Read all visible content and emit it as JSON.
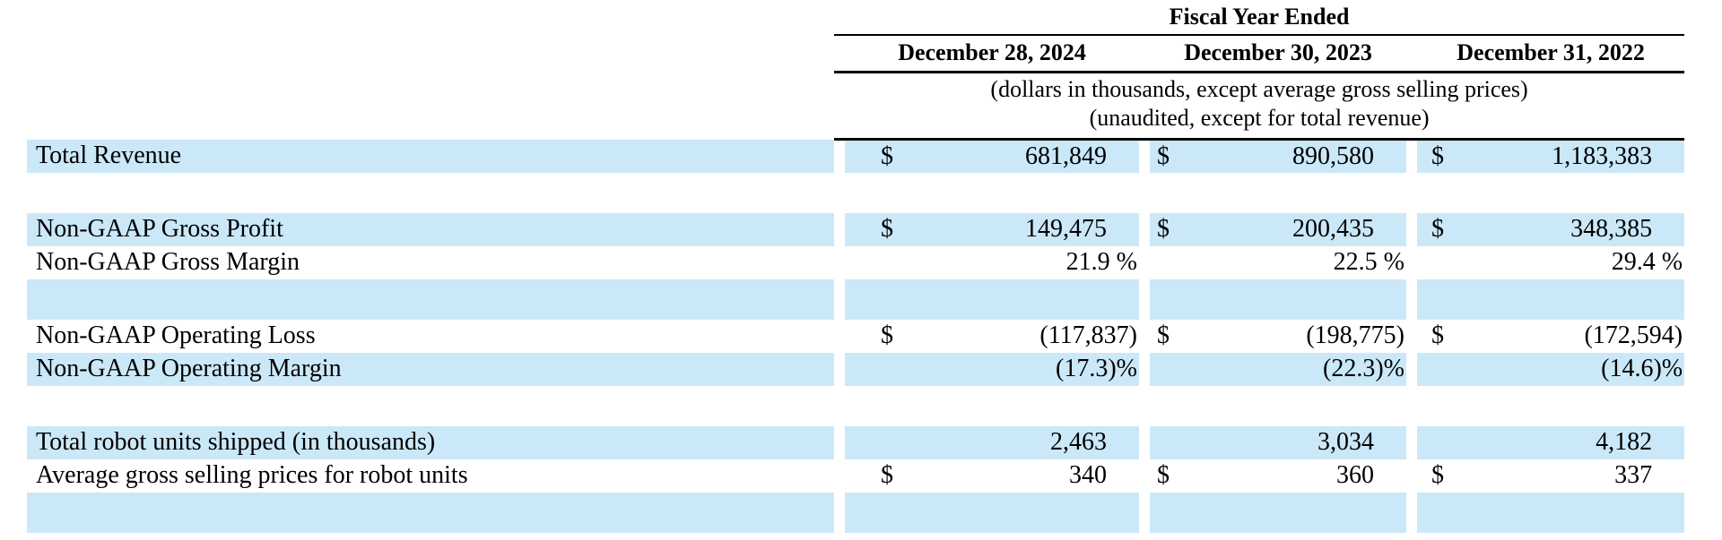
{
  "header": {
    "title": "Fiscal Year Ended",
    "columns": [
      "December 28, 2024",
      "December 30, 2023",
      "December 31, 2022"
    ],
    "notes": [
      "(dollars in thousands, except average gross selling prices)",
      "(unaudited, except for total revenue)"
    ]
  },
  "rows": [
    {
      "label": "Total Revenue",
      "shaded": true,
      "spacer": false,
      "dollar": true,
      "values": [
        "681,849",
        "890,580",
        "1,183,383"
      ]
    },
    {
      "label": "",
      "shaded": false,
      "spacer": true,
      "dollar": false,
      "values": [
        "",
        "",
        ""
      ]
    },
    {
      "label": "Non-GAAP Gross Profit",
      "shaded": true,
      "spacer": false,
      "dollar": true,
      "values": [
        "149,475",
        "200,435",
        "348,385"
      ]
    },
    {
      "label": "Non-GAAP Gross Margin",
      "shaded": false,
      "spacer": false,
      "dollar": false,
      "values": [
        "21.9 %",
        "22.5 %",
        "29.4 %"
      ]
    },
    {
      "label": "",
      "shaded": true,
      "spacer": true,
      "dollar": false,
      "values": [
        "",
        "",
        ""
      ]
    },
    {
      "label": "Non-GAAP Operating Loss",
      "shaded": false,
      "spacer": false,
      "dollar": true,
      "values": [
        "(117,837)",
        "(198,775)",
        "(172,594)"
      ]
    },
    {
      "label": "Non-GAAP Operating Margin",
      "shaded": true,
      "spacer": false,
      "dollar": false,
      "values": [
        "(17.3)%",
        "(22.3)%",
        "(14.6)%"
      ]
    },
    {
      "label": "",
      "shaded": false,
      "spacer": true,
      "dollar": false,
      "values": [
        "",
        "",
        ""
      ]
    },
    {
      "label": "Total robot units shipped (in thousands)",
      "shaded": true,
      "spacer": false,
      "dollar": false,
      "values": [
        "2,463",
        "3,034",
        "4,182"
      ]
    },
    {
      "label": "Average gross selling prices for robot units",
      "shaded": false,
      "spacer": false,
      "dollar": true,
      "values": [
        "340",
        "360",
        "337"
      ]
    },
    {
      "label": "",
      "shaded": true,
      "spacer": true,
      "dollar": false,
      "values": [
        "",
        "",
        ""
      ]
    }
  ],
  "colors": {
    "row_highlight": "#cbe8f8",
    "rule": "#000000",
    "text": "#000000"
  }
}
